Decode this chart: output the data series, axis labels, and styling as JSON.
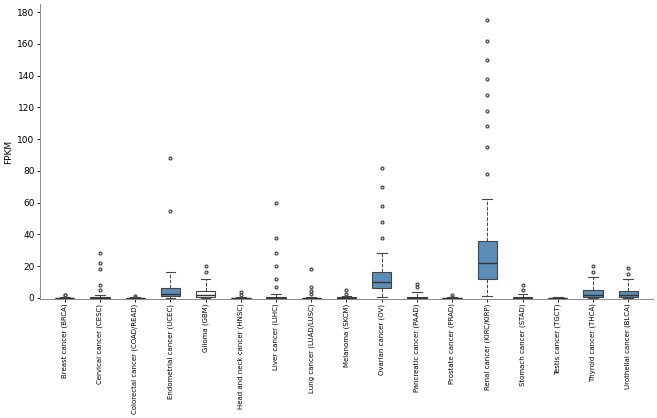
{
  "categories": [
    "Breast cancer (BRCA)",
    "Cervical cancer (CESC)",
    "Colorectal cancer (COAD/READ)",
    "Endometrial cancer (UCEC)",
    "Glioma (GBM)",
    "Head and neck cancer (HNSC)",
    "Liver cancer (LIHC)",
    "Lung cancer (LUAD/LUSC)",
    "Melanoma (SKCM)",
    "Ovarian cancer (OV)",
    "Pancreatic cancer (PAAD)",
    "Prostate cancer (PRAD)",
    "Renal cancer (KIRC/KIRP)",
    "Stomach cancer (STAD)",
    "Testis cancer (TGCT)",
    "Thyroid cancer (THCA)",
    "Urothelial cancer (BLCA)"
  ],
  "box_data": {
    "Breast cancer (BRCA)": {
      "q1": 0.0,
      "med": 0.05,
      "q3": 0.2,
      "whislo": 0.0,
      "whishi": 0.8,
      "fliers": [
        1.5,
        2.0
      ]
    },
    "Cervical cancer (CESC)": {
      "q1": 0.0,
      "med": 0.1,
      "q3": 0.4,
      "whislo": 0.0,
      "whishi": 2.0,
      "fliers": [
        5.0,
        8.0,
        18.0,
        22.0,
        28.0
      ]
    },
    "Colorectal cancer (COAD/READ)": {
      "q1": 0.0,
      "med": 0.0,
      "q3": 0.05,
      "whislo": 0.0,
      "whishi": 0.3,
      "fliers": [
        0.8,
        1.2
      ]
    },
    "Endometrial cancer (UCEC)": {
      "q1": 1.0,
      "med": 2.5,
      "q3": 6.0,
      "whislo": 0.0,
      "whishi": 16.0,
      "fliers": [
        55.0,
        88.0
      ]
    },
    "Glioma (GBM)": {
      "q1": 0.3,
      "med": 1.5,
      "q3": 4.5,
      "whislo": 0.0,
      "whishi": 12.0,
      "fliers": [
        16.0,
        20.0
      ]
    },
    "Head and neck cancer (HNSC)": {
      "q1": 0.0,
      "med": 0.05,
      "q3": 0.2,
      "whislo": 0.0,
      "whishi": 0.8,
      "fliers": [
        2.0,
        3.5
      ]
    },
    "Liver cancer (LIHC)": {
      "q1": 0.0,
      "med": 0.1,
      "q3": 0.4,
      "whislo": 0.0,
      "whishi": 2.5,
      "fliers": [
        7.0,
        12.0,
        20.0,
        28.0,
        38.0,
        60.0
      ]
    },
    "Lung cancer (LUAD/LUSC)": {
      "q1": 0.0,
      "med": 0.0,
      "q3": 0.1,
      "whislo": 0.0,
      "whishi": 0.8,
      "fliers": [
        2.5,
        4.0,
        7.0,
        18.0
      ]
    },
    "Melanoma (SKCM)": {
      "q1": 0.0,
      "med": 0.05,
      "q3": 0.3,
      "whislo": 0.0,
      "whishi": 1.2,
      "fliers": [
        2.5,
        5.0
      ]
    },
    "Ovarian cancer (OV)": {
      "q1": 6.0,
      "med": 10.0,
      "q3": 16.0,
      "whislo": 0.5,
      "whishi": 28.0,
      "fliers": [
        38.0,
        48.0,
        58.0,
        70.0,
        82.0
      ]
    },
    "Pancreatic cancer (PAAD)": {
      "q1": 0.0,
      "med": 0.2,
      "q3": 0.8,
      "whislo": 0.0,
      "whishi": 3.5,
      "fliers": [
        7.0,
        9.0
      ]
    },
    "Prostate cancer (PRAD)": {
      "q1": 0.0,
      "med": 0.0,
      "q3": 0.05,
      "whislo": 0.0,
      "whishi": 0.3,
      "fliers": [
        0.8,
        1.5
      ]
    },
    "Renal cancer (KIRC/KIRP)": {
      "q1": 12.0,
      "med": 22.0,
      "q3": 36.0,
      "whislo": 1.0,
      "whishi": 62.0,
      "fliers": [
        78.0,
        95.0,
        108.0,
        118.0,
        128.0,
        138.0,
        150.0,
        162.0,
        175.0
      ]
    },
    "Stomach cancer (STAD)": {
      "q1": 0.0,
      "med": 0.1,
      "q3": 0.5,
      "whislo": 0.0,
      "whishi": 2.5,
      "fliers": [
        5.0,
        8.0
      ]
    },
    "Testis cancer (TGCT)": {
      "q1": 0.0,
      "med": 0.05,
      "q3": 0.2,
      "whislo": 0.0,
      "whishi": 0.8,
      "fliers": []
    },
    "Thyroid cancer (THCA)": {
      "q1": 0.4,
      "med": 1.5,
      "q3": 5.0,
      "whislo": 0.0,
      "whishi": 13.0,
      "fliers": [
        16.0,
        20.0
      ]
    },
    "Urothelial cancer (BLCA)": {
      "q1": 0.4,
      "med": 1.5,
      "q3": 4.5,
      "whislo": 0.0,
      "whishi": 12.0,
      "fliers": [
        15.0,
        19.0
      ]
    }
  },
  "highlighted": [
    "Endometrial cancer (UCEC)",
    "Ovarian cancer (OV)",
    "Renal cancer (KIRC/KIRP)",
    "Thyroid cancer (THCA)",
    "Urothelial cancer (BLCA)"
  ],
  "box_color_normal": "#ffffff",
  "box_color_highlight": "#5b8db8",
  "box_edge_color": "#444444",
  "whisker_color": "#444444",
  "cap_color": "#444444",
  "median_color": "#333333",
  "flier_color": "#555555",
  "ylabel": "FPKM",
  "ylim": [
    -1.0,
    185.0
  ],
  "yticks": [
    0.0,
    20,
    40,
    60,
    80,
    100,
    120,
    140,
    160,
    180
  ],
  "background_color": "#ffffff",
  "figsize": [
    6.57,
    4.18
  ],
  "dpi": 100
}
